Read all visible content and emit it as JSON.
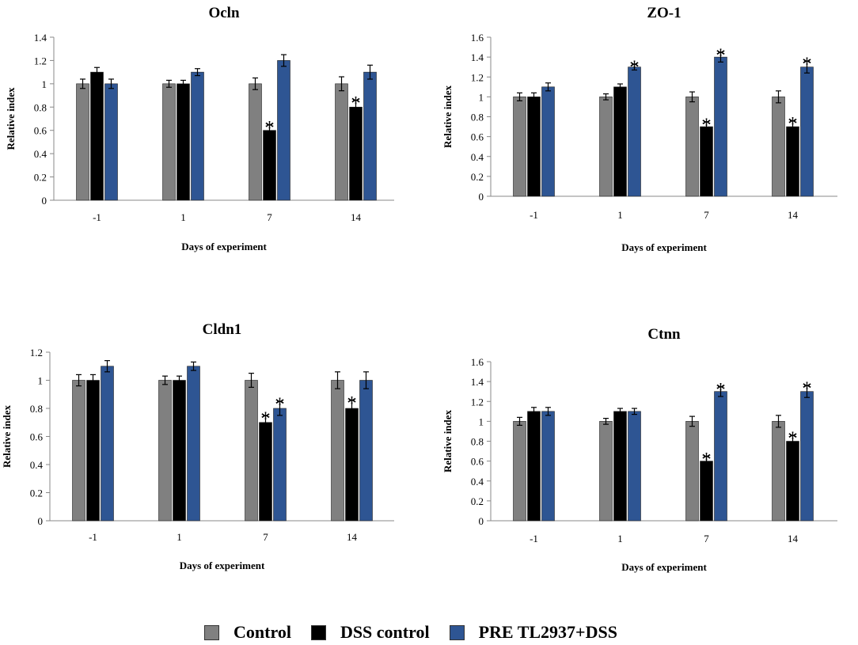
{
  "colors": {
    "Control": "#808080",
    "DSS control": "#000000",
    "PRE TL2937+DSS": "#2e5593"
  },
  "chart_data": [
    {
      "type": "bar",
      "title": "Ocln",
      "xlabel": "Days of experiment",
      "ylabel": "Relative index",
      "categories": [
        "-1",
        "1",
        "7",
        "14"
      ],
      "ylim": [
        0,
        1.4
      ],
      "yticks": [
        "0",
        "0.2",
        "0.4",
        "0.6",
        "0.8",
        "1",
        "1.2",
        "1.4"
      ],
      "series": [
        {
          "name": "Control",
          "values": [
            1.0,
            1.0,
            1.0,
            1.0
          ],
          "errors": [
            0.04,
            0.03,
            0.05,
            0.06
          ],
          "significant": [
            false,
            false,
            false,
            false
          ]
        },
        {
          "name": "DSS control",
          "values": [
            1.1,
            1.0,
            0.6,
            0.8
          ],
          "errors": [
            0.04,
            0.03,
            0.05,
            0.06
          ],
          "significant": [
            false,
            false,
            true,
            true
          ]
        },
        {
          "name": "PRE TL2937+DSS",
          "values": [
            1.0,
            1.1,
            1.2,
            1.1
          ],
          "errors": [
            0.04,
            0.03,
            0.05,
            0.06
          ],
          "significant": [
            false,
            false,
            false,
            false
          ]
        }
      ]
    },
    {
      "type": "bar",
      "title": "ZO-1",
      "xlabel": "Days of experiment",
      "ylabel": "Relative index",
      "categories": [
        "-1",
        "1",
        "7",
        "14"
      ],
      "ylim": [
        0,
        1.6
      ],
      "yticks": [
        "0",
        "0.2",
        "0.4",
        "0.6",
        "0.8",
        "1",
        "1.2",
        "1.4",
        "1.6"
      ],
      "series": [
        {
          "name": "Control",
          "values": [
            1.0,
            1.0,
            1.0,
            1.0
          ],
          "errors": [
            0.04,
            0.03,
            0.05,
            0.06
          ],
          "significant": [
            false,
            false,
            false,
            false
          ]
        },
        {
          "name": "DSS control",
          "values": [
            1.0,
            1.1,
            0.7,
            0.7
          ],
          "errors": [
            0.04,
            0.03,
            0.05,
            0.06
          ],
          "significant": [
            false,
            false,
            true,
            true
          ]
        },
        {
          "name": "PRE TL2937+DSS",
          "values": [
            1.1,
            1.3,
            1.4,
            1.3
          ],
          "errors": [
            0.04,
            0.03,
            0.05,
            0.06
          ],
          "significant": [
            false,
            true,
            true,
            true
          ]
        }
      ]
    },
    {
      "type": "bar",
      "title": "Cldn1",
      "xlabel": "Days of experiment",
      "ylabel": "Relative index",
      "categories": [
        "-1",
        "1",
        "7",
        "14"
      ],
      "ylim": [
        0,
        1.2
      ],
      "yticks": [
        "0",
        "0.2",
        "0.4",
        "0.6",
        "0.8",
        "1",
        "1.2"
      ],
      "series": [
        {
          "name": "Control",
          "values": [
            1.0,
            1.0,
            1.0,
            1.0
          ],
          "errors": [
            0.04,
            0.03,
            0.05,
            0.06
          ],
          "significant": [
            false,
            false,
            false,
            false
          ]
        },
        {
          "name": "DSS control",
          "values": [
            1.0,
            1.0,
            0.7,
            0.8
          ],
          "errors": [
            0.04,
            0.03,
            0.05,
            0.06
          ],
          "significant": [
            false,
            false,
            true,
            true
          ]
        },
        {
          "name": "PRE TL2937+DSS",
          "values": [
            1.1,
            1.1,
            0.8,
            1.0
          ],
          "errors": [
            0.04,
            0.03,
            0.05,
            0.06
          ],
          "significant": [
            false,
            false,
            true,
            false
          ]
        }
      ]
    },
    {
      "type": "bar",
      "title": "Ctnn",
      "xlabel": "Days of experiment",
      "ylabel": "Relative index",
      "categories": [
        "-1",
        "1",
        "7",
        "14"
      ],
      "ylim": [
        0,
        1.6
      ],
      "yticks": [
        "0",
        "0.2",
        "0.4",
        "0.6",
        "0.8",
        "1",
        "1.2",
        "1.4",
        "1.6"
      ],
      "series": [
        {
          "name": "Control",
          "values": [
            1.0,
            1.0,
            1.0,
            1.0
          ],
          "errors": [
            0.04,
            0.03,
            0.05,
            0.06
          ],
          "significant": [
            false,
            false,
            false,
            false
          ]
        },
        {
          "name": "DSS control",
          "values": [
            1.1,
            1.1,
            0.6,
            0.8
          ],
          "errors": [
            0.04,
            0.03,
            0.05,
            0.06
          ],
          "significant": [
            false,
            false,
            true,
            true
          ]
        },
        {
          "name": "PRE TL2937+DSS",
          "values": [
            1.1,
            1.1,
            1.3,
            1.3
          ],
          "errors": [
            0.04,
            0.03,
            0.05,
            0.06
          ],
          "significant": [
            false,
            false,
            true,
            true
          ]
        }
      ]
    }
  ],
  "legend": {
    "items": [
      "Control",
      "DSS control",
      "PRE TL2937+DSS"
    ]
  },
  "significance_marker": "*"
}
